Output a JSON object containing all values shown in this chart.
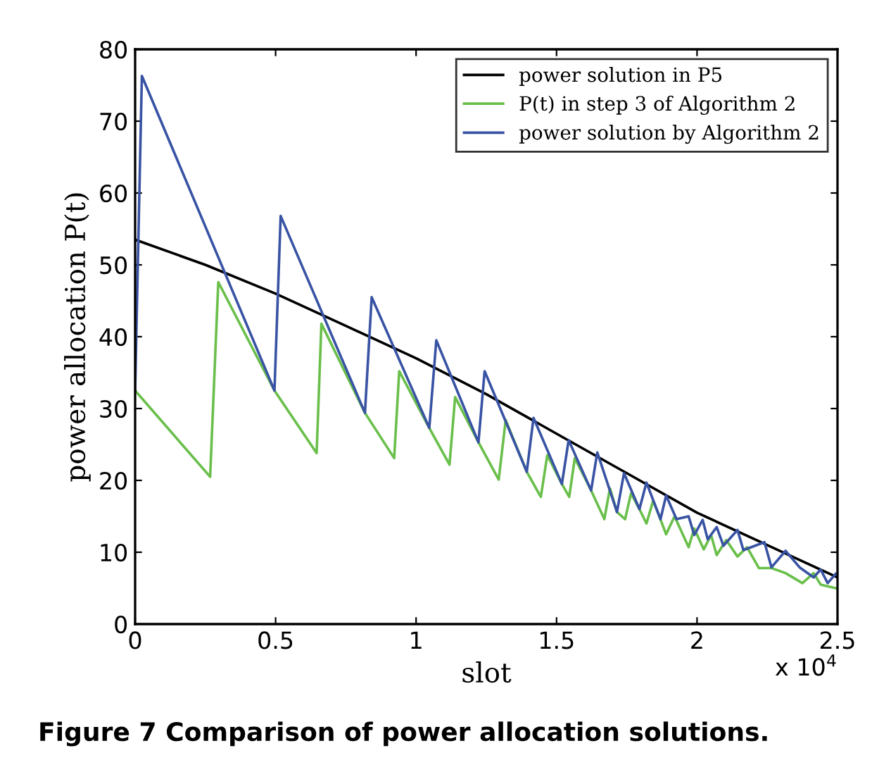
{
  "chart_data": {
    "type": "line",
    "xlabel": "slot",
    "ylabel": "power allocation P(t)",
    "xlim": [
      0,
      2.5
    ],
    "xticks": [
      0,
      0.5,
      1,
      1.5,
      2,
      2.5
    ],
    "ylim": [
      0,
      80
    ],
    "yticks": [
      0,
      10,
      20,
      30,
      40,
      50,
      60,
      70,
      80
    ],
    "grid": false,
    "legend": "top right",
    "annotations": [
      "x 10$^{4}$",
      "Figure 7 Comparison of power allocation solutions."
    ],
    "series": [
      {
        "name": "power solution in P5",
        "color": "#000000",
        "x": [
          0,
          0.25,
          0.5,
          0.75,
          1.0,
          1.25,
          1.5,
          1.75,
          2.0,
          2.25,
          2.5
        ],
        "values": [
          53.5,
          50,
          46,
          41.5,
          37,
          32,
          26.5,
          21,
          15.5,
          11,
          6.5
        ]
      },
      {
        "name": "P(t) in step 3 of Algorithm 2",
        "color": "#6abf4b",
        "x": [
          0,
          0.267,
          0.296,
          0.496,
          0.646,
          0.663,
          0.818,
          0.922,
          0.94,
          1.047,
          1.119,
          1.139,
          1.222,
          1.294,
          1.319,
          1.394,
          1.444,
          1.467,
          1.519,
          1.545,
          1.565,
          1.623,
          1.67,
          1.69,
          1.715,
          1.744,
          1.765,
          1.795,
          1.82,
          1.844,
          1.89,
          1.92,
          1.97,
          1.99,
          2.024,
          2.05,
          2.07,
          2.104,
          2.144,
          2.178,
          2.22,
          2.265,
          2.315,
          2.375,
          2.415,
          2.44,
          2.494
        ],
        "values": [
          32.5,
          20.5,
          47.6,
          32.5,
          23.8,
          41.8,
          29.4,
          23.1,
          35.2,
          27.3,
          22.2,
          31.6,
          25.3,
          20.1,
          28.4,
          21.2,
          17.7,
          23.5,
          19.5,
          17.7,
          23.1,
          18.6,
          14.6,
          18.9,
          15.6,
          14.6,
          18.2,
          16.0,
          14.0,
          17.2,
          12.5,
          15.0,
          10.7,
          13.3,
          10.4,
          12.4,
          9.6,
          11.7,
          9.4,
          10.7,
          7.8,
          7.8,
          7.1,
          5.7,
          7.1,
          5.5,
          5.0
        ]
      },
      {
        "name": "power solution by Algorithm 2",
        "color": "#3953a4",
        "x": [
          0,
          0.024,
          0.496,
          0.518,
          0.818,
          0.842,
          1.047,
          1.072,
          1.222,
          1.244,
          1.394,
          1.418,
          1.519,
          1.543,
          1.623,
          1.645,
          1.715,
          1.74,
          1.795,
          1.82,
          1.87,
          1.89,
          1.927,
          1.97,
          1.99,
          2.02,
          2.038,
          2.07,
          2.094,
          2.144,
          2.165,
          2.24,
          2.265,
          2.315,
          2.365,
          2.415,
          2.44,
          2.465,
          2.494
        ],
        "values": [
          32.5,
          76.3,
          32.5,
          56.8,
          29.4,
          45.5,
          27.3,
          39.5,
          25.3,
          35.2,
          21.2,
          28.7,
          19.5,
          25.6,
          18.6,
          23.9,
          15.6,
          21.0,
          16.0,
          19.7,
          14.6,
          17.9,
          14.6,
          15.0,
          12.4,
          14.5,
          11.8,
          13.5,
          10.9,
          13.1,
          10.3,
          11.4,
          7.9,
          10.2,
          7.9,
          6.5,
          7.6,
          5.7,
          7.0
        ]
      }
    ]
  }
}
